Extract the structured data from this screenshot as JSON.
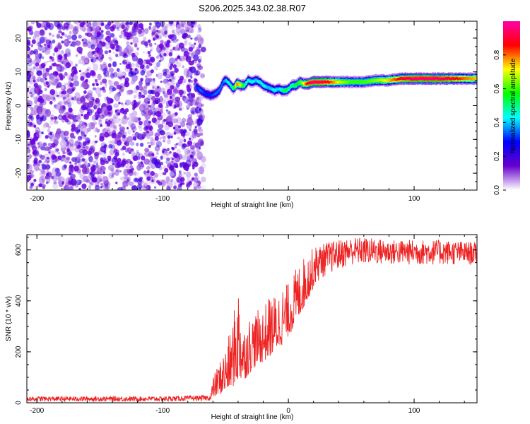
{
  "title": "S206.2025.343.02.38.R07",
  "chart_data": [
    {
      "type": "heatmap",
      "name": "spectrogram",
      "title": "S206.2025.343.02.38.R07",
      "xlabel": "Height of straight line (km)",
      "ylabel": "Frequency (Hz)",
      "xlim": [
        -208,
        150
      ],
      "ylim": [
        -25,
        25
      ],
      "xticks": [
        -200,
        -100,
        0,
        100
      ],
      "yticks": [
        20,
        10,
        0,
        -10,
        -20
      ],
      "colorbar": {
        "label": "Normalized spectral amplitude",
        "range": [
          0,
          1
        ],
        "ticks": [
          "0.0",
          "0.2",
          "0.4",
          "0.6",
          "0.8"
        ],
        "tick_values": [
          0.0,
          0.2,
          0.4,
          0.6,
          0.8
        ],
        "colormap": [
          "#ffffff",
          "#6600cc",
          "#0000ff",
          "#00ffff",
          "#00ff00",
          "#ffff00",
          "#ff0000",
          "#ff00aa"
        ]
      },
      "noise_region": {
        "x_from": -208,
        "x_to": -72,
        "amplitude": 0.12
      },
      "ridge": {
        "x": [
          -73,
          -70,
          -66,
          -62,
          -58,
          -55,
          -52,
          -50,
          -47,
          -44,
          -41,
          -38,
          -35,
          -32,
          -29,
          -26,
          -23,
          -20,
          -17,
          -14,
          -11,
          -8,
          -5,
          -2,
          0,
          3,
          6,
          9,
          12,
          15,
          20,
          30,
          40,
          50,
          60,
          70,
          80,
          90,
          100,
          110,
          120,
          130,
          140,
          150
        ],
        "y": [
          5.5,
          4.5,
          3.5,
          3.0,
          3.5,
          4.5,
          7.0,
          7.5,
          6.5,
          5.0,
          6.5,
          6.0,
          6.0,
          7.5,
          7.0,
          7.5,
          7.0,
          6.0,
          5.5,
          5.0,
          4.5,
          5.0,
          4.5,
          4.5,
          5.0,
          6.0,
          6.0,
          7.0,
          6.5,
          6.5,
          7.0,
          7.0,
          7.0,
          7.0,
          7.0,
          7.5,
          7.5,
          8.0,
          8.0,
          8.0,
          8.0,
          8.0,
          8.0,
          8.0
        ],
        "amplitude": [
          0.3,
          0.35,
          0.3,
          0.3,
          0.35,
          0.35,
          0.35,
          0.4,
          0.45,
          0.5,
          0.8,
          0.7,
          0.5,
          0.45,
          0.45,
          0.4,
          0.45,
          0.45,
          0.4,
          0.4,
          0.45,
          0.4,
          0.5,
          0.55,
          0.5,
          0.5,
          0.55,
          0.6,
          0.7,
          0.9,
          0.95,
          0.9,
          0.7,
          0.6,
          0.6,
          0.65,
          0.75,
          0.9,
          0.95,
          0.95,
          0.95,
          0.9,
          0.8,
          0.75
        ]
      }
    },
    {
      "type": "line",
      "name": "snr",
      "xlabel": "Height of straight line (km)",
      "ylabel": "SNR (10 * v/v)",
      "xlim": [
        -208,
        150
      ],
      "ylim": [
        0,
        660
      ],
      "xticks": [
        -200,
        -100,
        0,
        100
      ],
      "yticks": [
        0,
        200,
        400,
        600
      ],
      "color": "#ee2222",
      "envelope": {
        "x": [
          -208,
          -150,
          -100,
          -62,
          -60,
          -56,
          -50,
          -45,
          -40,
          -35,
          -30,
          -25,
          -20,
          -15,
          -10,
          -5,
          0,
          5,
          10,
          15,
          20,
          25,
          30,
          40,
          50,
          60,
          80,
          100,
          120,
          150
        ],
        "low": [
          5,
          5,
          5,
          8,
          20,
          30,
          40,
          60,
          80,
          90,
          120,
          150,
          160,
          180,
          200,
          230,
          260,
          300,
          350,
          400,
          450,
          480,
          500,
          520,
          540,
          540,
          540,
          540,
          540,
          540
        ],
        "high": [
          25,
          25,
          25,
          30,
          100,
          150,
          220,
          300,
          480,
          300,
          350,
          360,
          380,
          420,
          430,
          460,
          470,
          520,
          560,
          590,
          610,
          620,
          630,
          640,
          650,
          650,
          640,
          640,
          640,
          630
        ]
      }
    }
  ]
}
